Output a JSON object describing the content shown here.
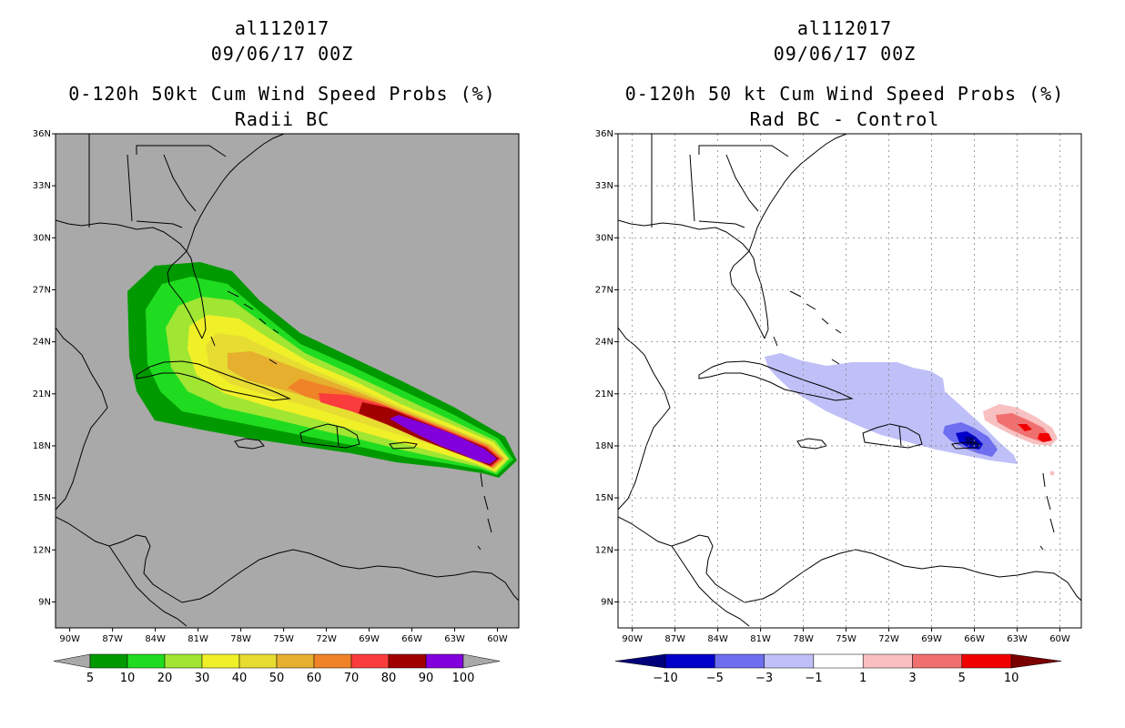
{
  "storm_id": "al112017",
  "cycle": "09/06/17 00Z",
  "chart_data": [
    {
      "type": "heatmap",
      "title": "0-120h 50kt Cum Wind Speed Probs (%)",
      "subtitle": "Radii BC",
      "units": "%",
      "lon_range": [
        -91,
        -58.5
      ],
      "lat_range": [
        7.5,
        36
      ],
      "x_ticks": [
        "90W",
        "87W",
        "84W",
        "81W",
        "78W",
        "75W",
        "72W",
        "69W",
        "66W",
        "63W",
        "60W"
      ],
      "y_ticks": [
        "9N",
        "12N",
        "15N",
        "18N",
        "21N",
        "24N",
        "27N",
        "30N",
        "33N",
        "36N"
      ],
      "background": "#a9a9a9",
      "colorbar": {
        "levels": [
          "5",
          "10",
          "20",
          "30",
          "40",
          "50",
          "60",
          "70",
          "80",
          "90",
          "100"
        ],
        "colors": [
          "#009a00",
          "#20dc20",
          "#a0e632",
          "#f0f028",
          "#e6dc32",
          "#e6af2d",
          "#f08228",
          "#fa3c3c",
          "#a00000",
          "#8200dc"
        ],
        "low_color": "#a9a9a9",
        "high_color": "#a9a9a9"
      },
      "track_hint": "probability swath centered near 17.5N 60W extending WNW to near 24N 82W"
    },
    {
      "type": "heatmap",
      "title": "0-120h 50 kt Cum Wind Speed Probs (%)",
      "subtitle": "Rad BC - Control",
      "units": "%",
      "lon_range": [
        -91,
        -58.5
      ],
      "lat_range": [
        7.5,
        36
      ],
      "x_ticks": [
        "90W",
        "87W",
        "84W",
        "81W",
        "78W",
        "75W",
        "72W",
        "69W",
        "66W",
        "63W",
        "60W"
      ],
      "y_ticks": [
        "9N",
        "12N",
        "15N",
        "18N",
        "21N",
        "24N",
        "27N",
        "30N",
        "33N",
        "36N"
      ],
      "background": "#ffffff",
      "grid": true,
      "colorbar": {
        "levels": [
          "-10",
          "-5",
          "-3",
          "-1",
          "1",
          "3",
          "5",
          "10"
        ],
        "colors": [
          "#0000c8",
          "#6e6ef0",
          "#c0c0f8",
          "#ffffff",
          "#f8c0c0",
          "#f07070",
          "#f00000"
        ],
        "low_color": "#00007a",
        "high_color": "#7a0000"
      },
      "features": [
        {
          "sign": "negative",
          "peak": "-10",
          "center": "18.3N 65.9W"
        },
        {
          "sign": "positive",
          "peak": "10",
          "center": "18.7N 61W"
        }
      ]
    }
  ]
}
